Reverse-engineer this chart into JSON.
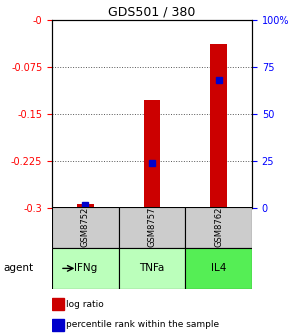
{
  "title": "GDS501 / 380",
  "samples": [
    "GSM8752",
    "GSM8757",
    "GSM8762"
  ],
  "agents": [
    "IFNg",
    "TNFa",
    "IL4"
  ],
  "log_ratios": [
    -0.293,
    -0.128,
    -0.038
  ],
  "percentile_ranks": [
    2,
    24,
    68
  ],
  "ylim_left": [
    -0.3,
    0.0
  ],
  "ylim_right": [
    0,
    100
  ],
  "yticks_left": [
    -0.3,
    -0.225,
    -0.15,
    -0.075,
    0.0
  ],
  "yticks_right": [
    0,
    25,
    50,
    75,
    100
  ],
  "ytick_labels_left": [
    "-0.3",
    "-0.225",
    "-0.15",
    "-0.075",
    "-0"
  ],
  "ytick_labels_right": [
    "0",
    "25",
    "50",
    "75",
    "100%"
  ],
  "bar_color": "#cc0000",
  "dot_color": "#0000cc",
  "sample_bg_color": "#cccccc",
  "agent_colors": [
    "#bbffbb",
    "#bbffbb",
    "#55ee55"
  ],
  "bar_width": 0.25,
  "dot_size": 4,
  "grid_linestyle": "dotted",
  "grid_color": "#555555",
  "grid_linewidth": 0.7,
  "title_fontsize": 9,
  "tick_fontsize": 7,
  "label_fontsize": 7
}
